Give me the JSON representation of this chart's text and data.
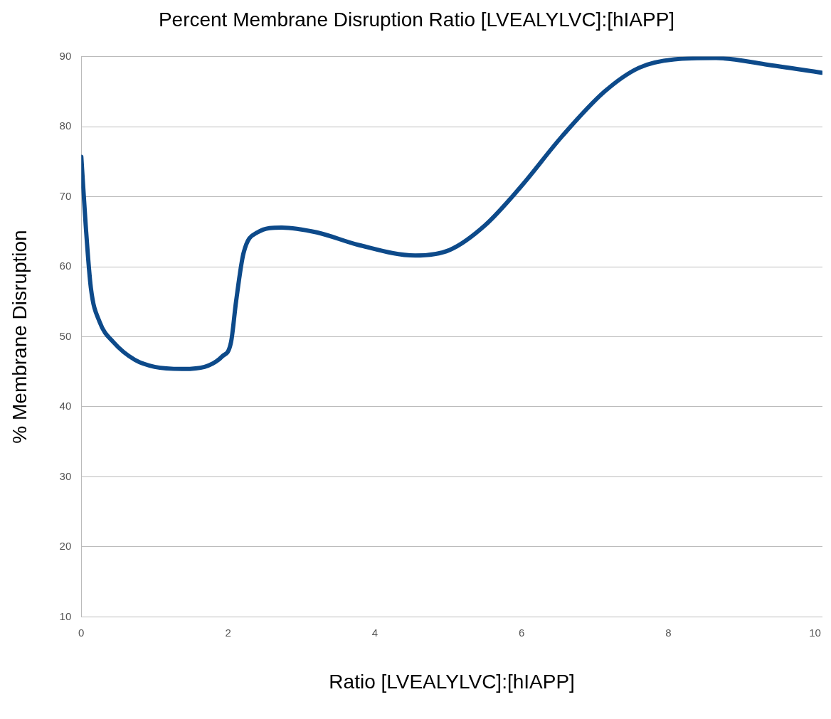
{
  "chart_data": {
    "type": "line",
    "title": "Percent Membrane Disruption Ratio [LVEALYLVC]:[hIAPP]",
    "xlabel": "Ratio [LVEALYLVC]:[hIAPP]",
    "ylabel": "% Membrane Disruption",
    "x": [
      0,
      0.06,
      0.13,
      0.25,
      0.44,
      0.73,
      1.0,
      1.39,
      1.68,
      1.92,
      2.04,
      2.11,
      2.21,
      2.4,
      2.73,
      3.21,
      3.78,
      4.55,
      5.02,
      5.5,
      5.98,
      6.55,
      7.13,
      7.6,
      8.08,
      8.65,
      9.32,
      10.09
    ],
    "series": [
      {
        "color": "#0d4a8a",
        "values": [
          75.7,
          65.9,
          57.0,
          52.1,
          49.2,
          46.7,
          45.7,
          45.4,
          45.7,
          47.2,
          49.2,
          55.1,
          61.9,
          64.9,
          65.6,
          64.9,
          63.1,
          61.6,
          62.4,
          65.9,
          71.3,
          78.6,
          85.0,
          88.4,
          89.6,
          89.8,
          88.9,
          87.7
        ]
      }
    ],
    "xlim": [
      0,
      10.1
    ],
    "xticks": [
      0,
      2,
      4,
      6,
      8,
      10
    ],
    "ylim": [
      10,
      90
    ],
    "yticks": [
      10,
      20,
      30,
      40,
      50,
      60,
      70,
      80,
      90
    ],
    "grid": "y",
    "legend": false,
    "marker": "none",
    "line_style": "solid"
  }
}
